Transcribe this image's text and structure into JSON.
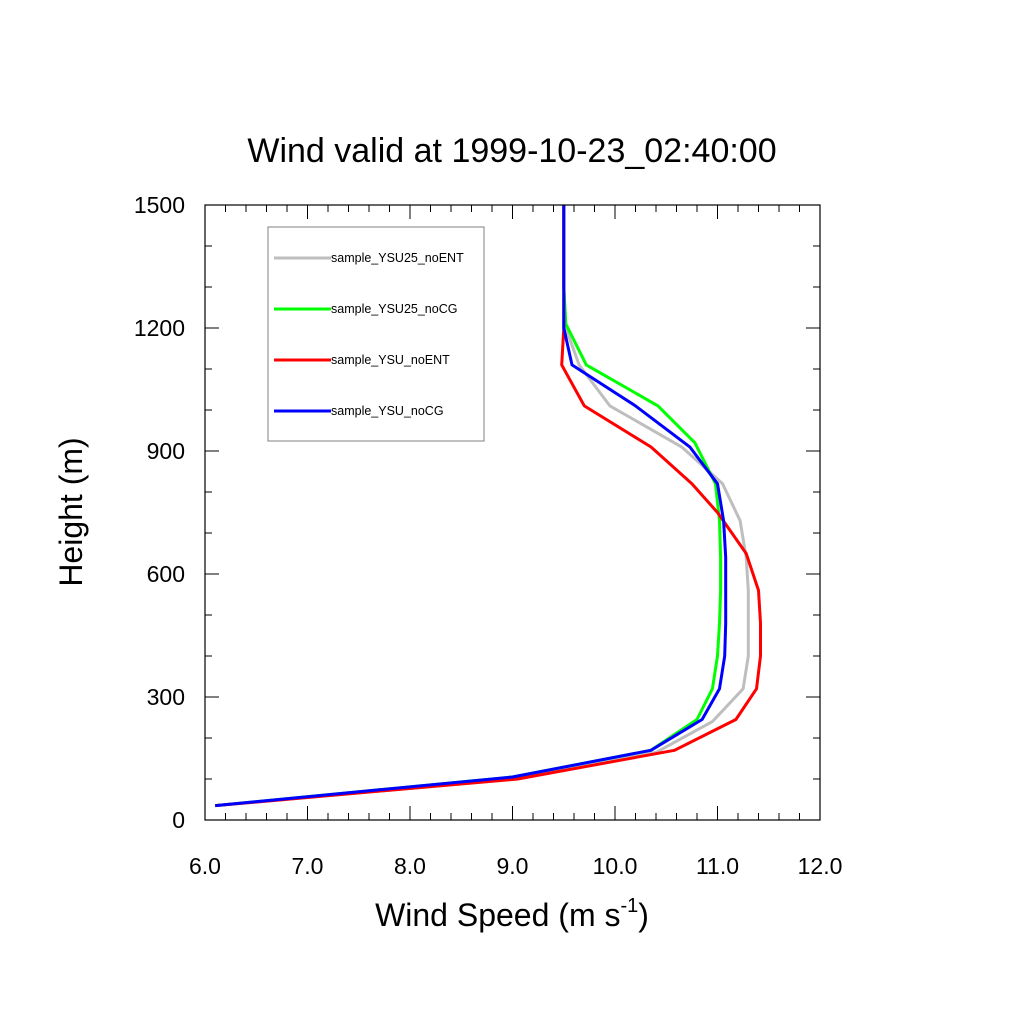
{
  "chart_data": {
    "type": "line",
    "title": "Wind valid at 1999-10-23_02:40:00",
    "xlabel": "Wind Speed (m s",
    "xlabel_superscript": "-1",
    "xlabel_close": ")",
    "ylabel": "Height (m)",
    "xlim": [
      6.0,
      12.0
    ],
    "ylim": [
      0,
      1500
    ],
    "xticks": [
      "6.0",
      "7.0",
      "8.0",
      "9.0",
      "10.0",
      "11.0",
      "12.0"
    ],
    "xtick_values": [
      6,
      7,
      8,
      9,
      10,
      11,
      12
    ],
    "yticks": [
      "0",
      "300",
      "600",
      "900",
      "1200",
      "1500"
    ],
    "ytick_values": [
      0,
      300,
      600,
      900,
      1200,
      1500
    ],
    "grid": false,
    "legend_position": "top-left",
    "series": [
      {
        "name": "sample_YSU25_noENT",
        "color": "#bebebe",
        "points": [
          [
            6.1,
            35
          ],
          [
            9.05,
            100
          ],
          [
            10.4,
            165
          ],
          [
            10.95,
            240
          ],
          [
            11.25,
            320
          ],
          [
            11.3,
            400
          ],
          [
            11.3,
            480
          ],
          [
            11.3,
            560
          ],
          [
            11.28,
            640
          ],
          [
            11.22,
            730
          ],
          [
            11.05,
            820
          ],
          [
            10.65,
            910
          ],
          [
            9.95,
            1010
          ],
          [
            9.65,
            1110
          ],
          [
            9.52,
            1200
          ],
          [
            9.5,
            1300
          ],
          [
            9.5,
            1400
          ],
          [
            9.5,
            1500
          ]
        ]
      },
      {
        "name": "sample_YSU25_noCG",
        "color": "#00ff00",
        "points": [
          [
            6.1,
            35
          ],
          [
            9.0,
            105
          ],
          [
            10.35,
            170
          ],
          [
            10.8,
            245
          ],
          [
            10.95,
            320
          ],
          [
            11.0,
            400
          ],
          [
            11.02,
            480
          ],
          [
            11.03,
            560
          ],
          [
            11.03,
            640
          ],
          [
            11.02,
            730
          ],
          [
            10.98,
            820
          ],
          [
            10.78,
            920
          ],
          [
            10.42,
            1010
          ],
          [
            9.72,
            1110
          ],
          [
            9.52,
            1210
          ],
          [
            9.5,
            1300
          ],
          [
            9.5,
            1400
          ],
          [
            9.5,
            1500
          ]
        ]
      },
      {
        "name": "sample_YSU_noENT",
        "color": "#ff0000",
        "points": [
          [
            6.1,
            35
          ],
          [
            9.05,
            100
          ],
          [
            10.58,
            170
          ],
          [
            11.18,
            245
          ],
          [
            11.38,
            320
          ],
          [
            11.42,
            400
          ],
          [
            11.42,
            480
          ],
          [
            11.4,
            560
          ],
          [
            11.28,
            650
          ],
          [
            11.0,
            750
          ],
          [
            10.75,
            820
          ],
          [
            10.35,
            910
          ],
          [
            9.7,
            1010
          ],
          [
            9.48,
            1110
          ],
          [
            9.5,
            1200
          ],
          [
            9.5,
            1300
          ],
          [
            9.5,
            1400
          ],
          [
            9.5,
            1500
          ]
        ]
      },
      {
        "name": "sample_YSU_noCG",
        "color": "#0000ff",
        "points": [
          [
            6.1,
            35
          ],
          [
            9.0,
            105
          ],
          [
            10.35,
            170
          ],
          [
            10.85,
            245
          ],
          [
            11.02,
            320
          ],
          [
            11.07,
            400
          ],
          [
            11.08,
            480
          ],
          [
            11.08,
            560
          ],
          [
            11.08,
            640
          ],
          [
            11.06,
            730
          ],
          [
            11.0,
            820
          ],
          [
            10.73,
            910
          ],
          [
            10.2,
            1010
          ],
          [
            9.58,
            1110
          ],
          [
            9.5,
            1200
          ],
          [
            9.5,
            1300
          ],
          [
            9.5,
            1400
          ],
          [
            9.5,
            1500
          ]
        ]
      }
    ]
  }
}
